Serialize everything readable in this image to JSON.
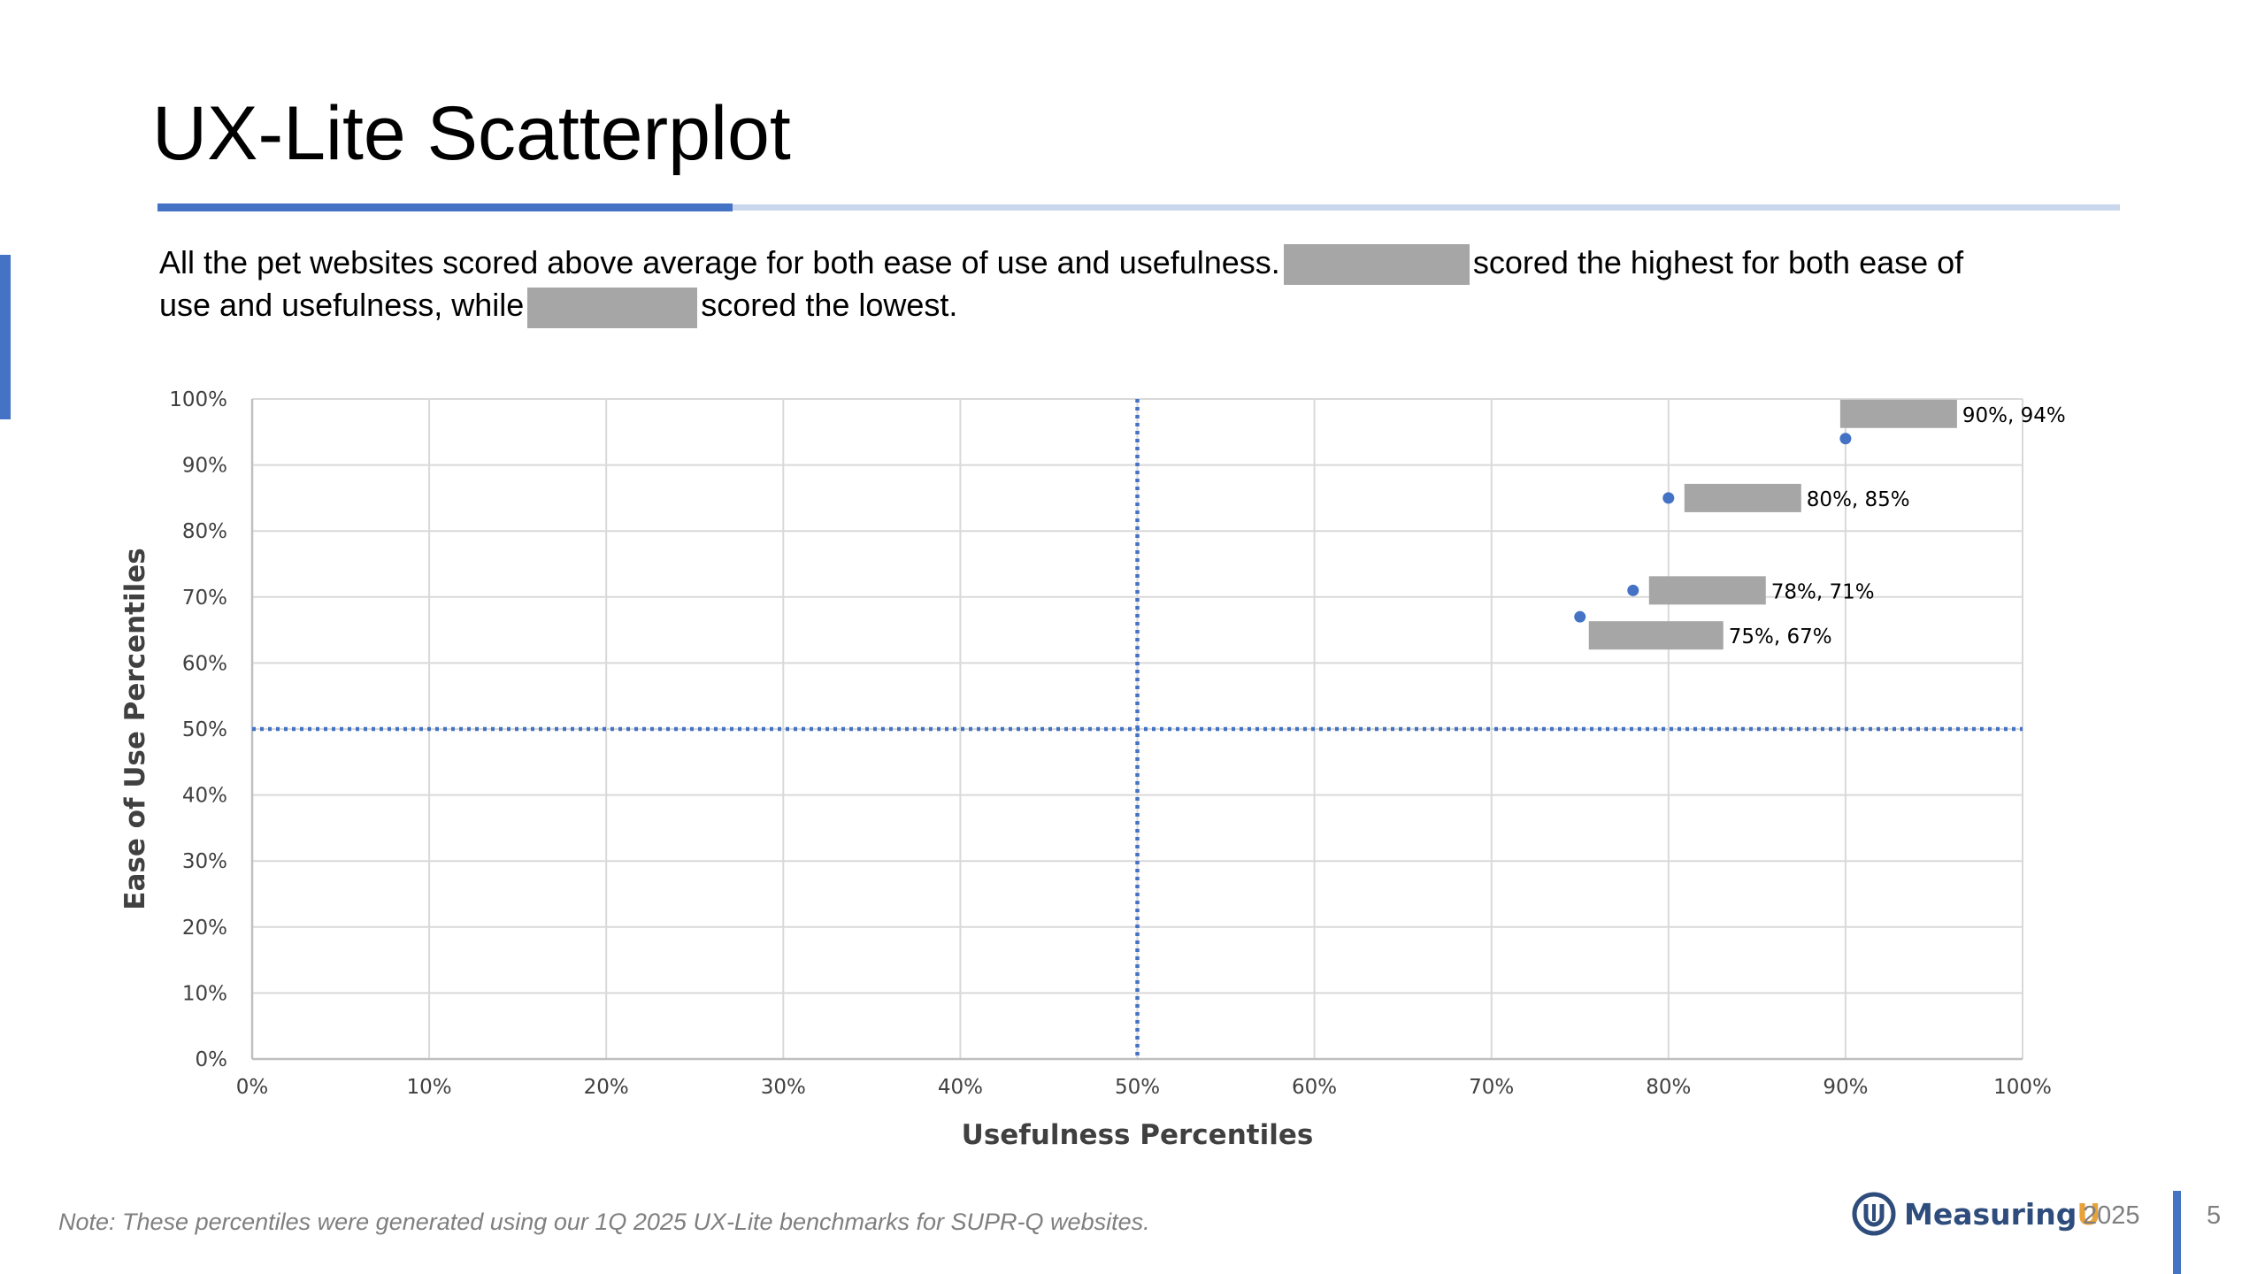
{
  "slide": {
    "title": "UX-Lite Scatterplot",
    "summary_part1": "All the pet websites scored above average for both ease of use and usefulness.",
    "summary_part2": "scored the highest for both ease of use and usefulness, while",
    "summary_part3": "scored the lowest.",
    "note": "Note: These percentiles were generated using our 1Q 2025 UX-Lite benchmarks for SUPR-Q websites.",
    "brand": "Measuring",
    "brand_accent": "U",
    "year": "2025",
    "page_number": "5"
  },
  "colors": {
    "accent": "#4472c4",
    "accent_light": "#c9d6ec",
    "redaction": "#a6a6a6",
    "brand_dark": "#2f4d7c",
    "brand_orange": "#e8a23a"
  },
  "chart_data": {
    "type": "scatter",
    "xlabel": "Usefulness Percentiles",
    "ylabel": "Ease of Use Percentiles",
    "xlim": [
      0,
      100
    ],
    "ylim": [
      0,
      100
    ],
    "x_ticks": [
      "0%",
      "10%",
      "20%",
      "30%",
      "40%",
      "50%",
      "60%",
      "70%",
      "80%",
      "90%",
      "100%"
    ],
    "y_ticks": [
      "0%",
      "10%",
      "20%",
      "30%",
      "40%",
      "50%",
      "60%",
      "70%",
      "80%",
      "90%",
      "100%"
    ],
    "grid": true,
    "reference_lines": {
      "x": 50,
      "y": 50,
      "style": "dotted"
    },
    "points": [
      {
        "x": 90,
        "y": 94,
        "label": "90%, 94%",
        "label_position": "above-right"
      },
      {
        "x": 80,
        "y": 85,
        "label": "80%, 85%",
        "label_position": "right"
      },
      {
        "x": 78,
        "y": 71,
        "label": "78%, 71%",
        "label_position": "right"
      },
      {
        "x": 75,
        "y": 67,
        "label": "75%, 67%",
        "label_position": "below-right"
      }
    ]
  }
}
